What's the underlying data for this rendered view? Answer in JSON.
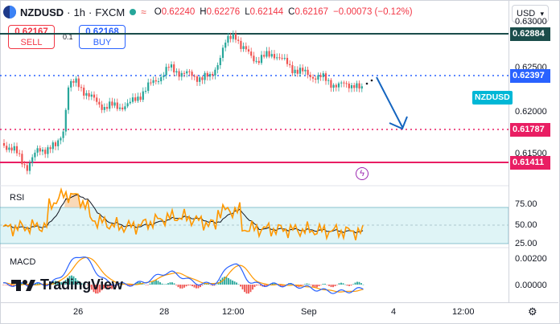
{
  "header": {
    "symbol": "NZDUSD",
    "separator1": "·",
    "interval": "1h",
    "separator2": "·",
    "source": "FXCM",
    "ohlc": [
      {
        "key": "O",
        "value": "0.62240"
      },
      {
        "key": "H",
        "value": "0.62276"
      },
      {
        "key": "L",
        "value": "0.62144"
      },
      {
        "key": "C",
        "value": "0.62167"
      }
    ],
    "change": "−0.00073 (−0.12%)"
  },
  "trade": {
    "sell_price": "0.62167",
    "sell_label": "SELL",
    "spread": "0.1",
    "buy_price": "0.62168",
    "buy_label": "BUY"
  },
  "currency_select": {
    "value": "USD"
  },
  "price_axis": {
    "ticks": [
      "0.63000",
      "0.62500",
      "0.62000",
      "0.61500"
    ],
    "labels": [
      {
        "value": "0.62884",
        "color": "#1b4d4b"
      },
      {
        "value": "0.62397",
        "color": "#2962ff"
      },
      {
        "value": "0.61787",
        "color": "#e91e63"
      },
      {
        "value": "0.61411",
        "color": "#e91e63"
      }
    ],
    "symbol_tag": "NZDUSD"
  },
  "rsi": {
    "label": "RSI",
    "ticks": [
      "75.00",
      "50.00",
      "25.00"
    ]
  },
  "macd": {
    "label": "MACD",
    "ticks": [
      "0.00200",
      "0.00000"
    ]
  },
  "time_axis": {
    "labels": [
      "26",
      "28",
      "12:00",
      "Sep",
      "4",
      "12:00"
    ]
  },
  "branding": {
    "name": "TradingView"
  },
  "colors": {
    "up": "#26a69a",
    "down": "#ef5350",
    "resistance": "#1b4d4b",
    "support": "#e91e63",
    "blue": "#2962ff",
    "rsi_line": "#ff9800"
  },
  "icons": [
    "flag-icon",
    "market-status-icon",
    "wave-icon",
    "chevron-down-icon",
    "lightning-icon",
    "settings-icon",
    "tradingview-logo-icon"
  ]
}
